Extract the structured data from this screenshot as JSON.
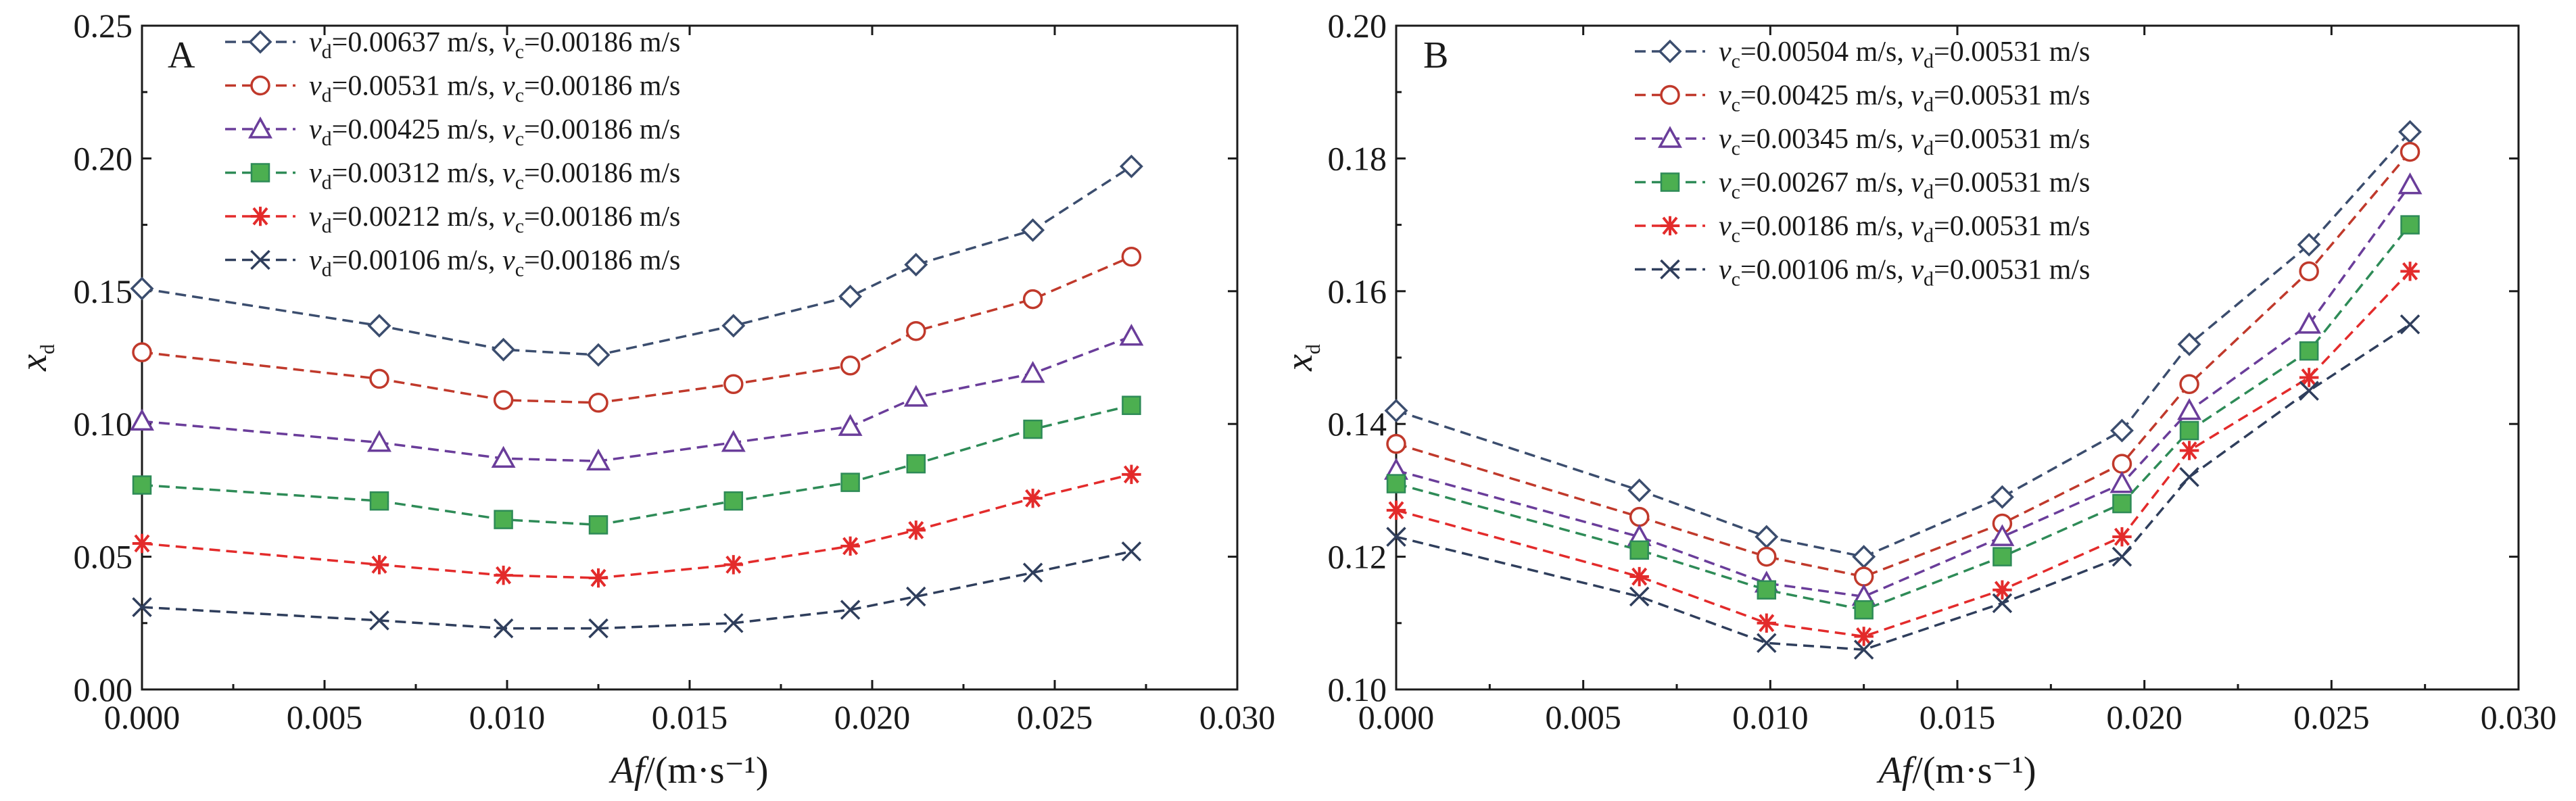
{
  "colors": {
    "blue": "#3b4d6e",
    "red": "#c0392b",
    "purple": "#6a3d9a",
    "green": "#2e8b57",
    "green_fill": "#4caf50",
    "red_star": "#e32b2b",
    "navy": "#2f3e5c"
  },
  "chart_data": [
    {
      "type": "line",
      "panel_label": "A",
      "xlabel": "Af/(m·s⁻¹)",
      "ylabel": "xd",
      "xlim": [
        0,
        0.03
      ],
      "ylim": [
        0,
        0.25
      ],
      "xticks": [
        "0.000",
        "0.005",
        "0.010",
        "0.015",
        "0.020",
        "0.025",
        "0.030"
      ],
      "yticks": [
        "0.00",
        "0.05",
        "0.10",
        "0.15",
        "0.20",
        "0.25"
      ],
      "x": [
        0.0,
        0.0065,
        0.0099,
        0.0125,
        0.0162,
        0.0194,
        0.0212,
        0.0244,
        0.0271
      ],
      "legend_position": "top-left",
      "series": [
        {
          "name": "vd=0.00637 m/s, vc=0.00186 m/s",
          "v1": "v",
          "s1": "d",
          "val1": "=0.00637 m/s, ",
          "v2": "v",
          "s2": "c",
          "val2": "=0.00186 m/s",
          "marker": "diamond",
          "color": "#3b4d6e",
          "filled": false,
          "values": [
            0.151,
            0.137,
            0.128,
            0.126,
            0.137,
            0.148,
            0.16,
            0.173,
            0.197
          ]
        },
        {
          "name": "vd=0.00531 m/s, vc=0.00186 m/s",
          "v1": "v",
          "s1": "d",
          "val1": "=0.00531 m/s, ",
          "v2": "v",
          "s2": "c",
          "val2": "=0.00186 m/s",
          "marker": "circle",
          "color": "#c0392b",
          "filled": false,
          "values": [
            0.127,
            0.117,
            0.109,
            0.108,
            0.115,
            0.122,
            0.135,
            0.147,
            0.163
          ]
        },
        {
          "name": "vd=0.00425 m/s, vc=0.00186 m/s",
          "v1": "v",
          "s1": "d",
          "val1": "=0.00425 m/s, ",
          "v2": "v",
          "s2": "c",
          "val2": "=0.00186 m/s",
          "marker": "triangle",
          "color": "#6a3d9a",
          "filled": false,
          "values": [
            0.101,
            0.093,
            0.087,
            0.086,
            0.093,
            0.099,
            0.11,
            0.119,
            0.133
          ]
        },
        {
          "name": "vd=0.00312 m/s, vc=0.00186 m/s",
          "v1": "v",
          "s1": "d",
          "val1": "=0.00312 m/s, ",
          "v2": "v",
          "s2": "c",
          "val2": "=0.00186 m/s",
          "marker": "square",
          "color": "#2e8b57",
          "filled": true,
          "values": [
            0.077,
            0.071,
            0.064,
            0.062,
            0.071,
            0.078,
            0.085,
            0.098,
            0.107
          ]
        },
        {
          "name": "vd=0.00212 m/s, vc=0.00186 m/s",
          "v1": "v",
          "s1": "d",
          "val1": "=0.00212 m/s, ",
          "v2": "v",
          "s2": "c",
          "val2": "=0.00186 m/s",
          "marker": "star",
          "color": "#e32b2b",
          "filled": false,
          "values": [
            0.055,
            0.047,
            0.043,
            0.042,
            0.047,
            0.054,
            0.06,
            0.072,
            0.081
          ]
        },
        {
          "name": "vd=0.00106 m/s, vc=0.00186 m/s",
          "v1": "v",
          "s1": "d",
          "val1": "=0.00106 m/s, ",
          "v2": "v",
          "s2": "c",
          "val2": "=0.00186 m/s",
          "marker": "cross",
          "color": "#2f3e5c",
          "filled": false,
          "values": [
            0.031,
            0.026,
            0.023,
            0.023,
            0.025,
            0.03,
            0.035,
            0.044,
            0.052
          ]
        }
      ]
    },
    {
      "type": "line",
      "panel_label": "B",
      "xlabel": "Af/(m·s⁻¹)",
      "ylabel": "xd",
      "xlim": [
        0,
        0.03
      ],
      "ylim": [
        0.1,
        0.2
      ],
      "xticks": [
        "0.000",
        "0.005",
        "0.010",
        "0.015",
        "0.020",
        "0.025",
        "0.030"
      ],
      "yticks": [
        "0.10",
        "0.12",
        "0.14",
        "0.16",
        "0.18",
        "0.20"
      ],
      "x": [
        0.0,
        0.0065,
        0.0099,
        0.0125,
        0.0162,
        0.0194,
        0.0212,
        0.0244,
        0.0271
      ],
      "legend_position": "top-center",
      "series": [
        {
          "name": "vc=0.00504 m/s, vd=0.00531 m/s",
          "v1": "v",
          "s1": "c",
          "val1": "=0.00504 m/s, ",
          "v2": "v",
          "s2": "d",
          "val2": "=0.00531 m/s",
          "marker": "diamond",
          "color": "#3b4d6e",
          "filled": false,
          "values": [
            0.142,
            0.13,
            0.123,
            0.12,
            0.129,
            0.139,
            0.152,
            0.167,
            0.184
          ]
        },
        {
          "name": "vc=0.00425 m/s, vd=0.00531 m/s",
          "v1": "v",
          "s1": "c",
          "val1": "=0.00425 m/s, ",
          "v2": "v",
          "s2": "d",
          "val2": "=0.00531 m/s",
          "marker": "circle",
          "color": "#c0392b",
          "filled": false,
          "values": [
            0.137,
            0.126,
            0.12,
            0.117,
            0.125,
            0.134,
            0.146,
            0.163,
            0.181
          ]
        },
        {
          "name": "vc=0.00345 m/s, vd=0.00531 m/s",
          "v1": "v",
          "s1": "c",
          "val1": "=0.00345 m/s, ",
          "v2": "v",
          "s2": "d",
          "val2": "=0.00531 m/s",
          "marker": "triangle",
          "color": "#6a3d9a",
          "filled": false,
          "values": [
            0.133,
            0.123,
            0.116,
            0.114,
            0.123,
            0.131,
            0.142,
            0.155,
            0.176
          ]
        },
        {
          "name": "vc=0.00267 m/s, vd=0.00531 m/s",
          "v1": "v",
          "s1": "c",
          "val1": "=0.00267 m/s, ",
          "v2": "v",
          "s2": "d",
          "val2": "=0.00531 m/s",
          "marker": "square",
          "color": "#2e8b57",
          "filled": true,
          "values": [
            0.131,
            0.121,
            0.115,
            0.112,
            0.12,
            0.128,
            0.139,
            0.151,
            0.17
          ]
        },
        {
          "name": "vc=0.00186 m/s, vd=0.00531 m/s",
          "v1": "v",
          "s1": "c",
          "val1": "=0.00186 m/s, ",
          "v2": "v",
          "s2": "d",
          "val2": "=0.00531 m/s",
          "marker": "star",
          "color": "#e32b2b",
          "filled": false,
          "values": [
            0.127,
            0.117,
            0.11,
            0.108,
            0.115,
            0.123,
            0.136,
            0.147,
            0.163
          ]
        },
        {
          "name": "vc=0.00106 m/s, vd=0.00531 m/s",
          "v1": "v",
          "s1": "c",
          "val1": "=0.00106 m/s, ",
          "v2": "v",
          "s2": "d",
          "val2": "=0.00531 m/s",
          "marker": "cross",
          "color": "#2f3e5c",
          "filled": false,
          "values": [
            0.123,
            0.114,
            0.107,
            0.106,
            0.113,
            0.12,
            0.132,
            0.145,
            0.155
          ]
        }
      ]
    }
  ]
}
